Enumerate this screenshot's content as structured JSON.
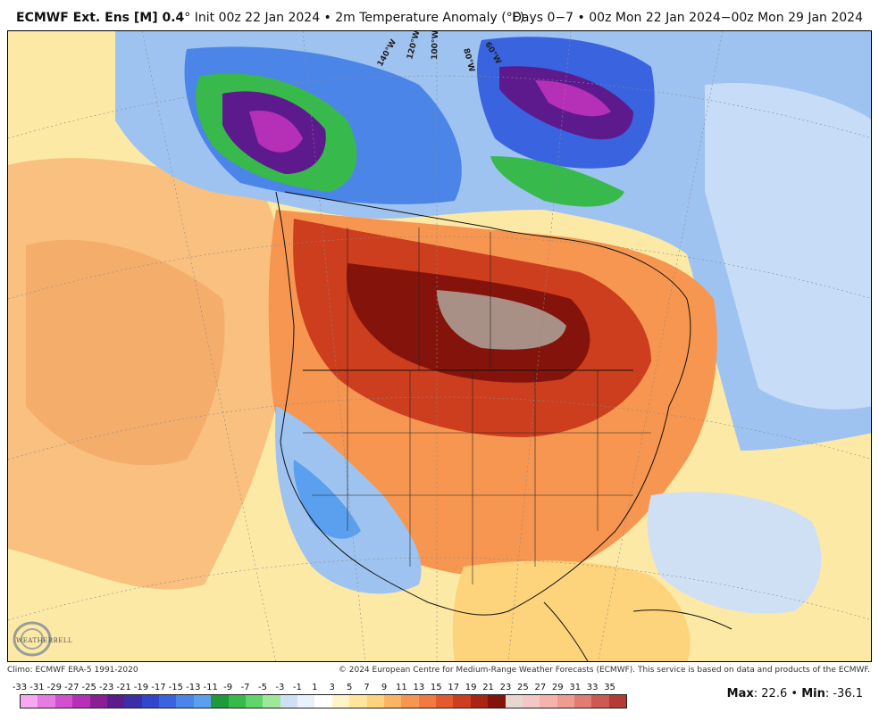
{
  "header": {
    "title_model": "ECMWF Ext. Ens [M] 0.4",
    "title_rest": "° Init 00z 22 Jan 2024 • 2m Temperature Anomaly (°F)",
    "valid_range": "Days 0−7 • 00z Mon 22 Jan 2024−00z Mon 29 Jan 2024"
  },
  "map": {
    "longitude_labels": [
      "140°W",
      "120°W",
      "100°W",
      "80°W",
      "60°W"
    ]
  },
  "footer": {
    "climo": "Climo: ECMWF ERA-5 1991-2020",
    "copyright": "© 2024 European Centre for Medium-Range Weather Forecasts (ECMWF). This service is based on data and products of the ECMWF."
  },
  "logo": {
    "text": "WEATHERBELL",
    "icon": "weatherbell-logo-icon"
  },
  "scale": {
    "labels": [
      "-33",
      "-31",
      "-29",
      "-27",
      "-25",
      "-23",
      "-21",
      "-19",
      "-17",
      "-15",
      "-13",
      "-11",
      "-9",
      "-7",
      "-5",
      "-3",
      "-1",
      "1",
      "3",
      "5",
      "7",
      "9",
      "11",
      "13",
      "15",
      "17",
      "19",
      "21",
      "23",
      "25",
      "27",
      "29",
      "31",
      "33",
      "35"
    ],
    "colors": [
      "#f7a8f0",
      "#e77ae3",
      "#d24fcf",
      "#b52fb7",
      "#8a1f95",
      "#5d1a8d",
      "#3b2fa8",
      "#3146cd",
      "#3a63e0",
      "#4c85e8",
      "#5aa0ef",
      "#1f9a3b",
      "#37b94c",
      "#5fd66a",
      "#9ee79b",
      "#cfe0f5",
      "#e9f1fb",
      "#ffffff",
      "#fff4c6",
      "#ffe69a",
      "#fdd37b",
      "#fbb562",
      "#f79650",
      "#f07a3f",
      "#e35a2e",
      "#cc3e1e",
      "#aa2413",
      "#84140b",
      "#e8d6d0",
      "#f3c7c4",
      "#f5b3ae",
      "#ee9b92",
      "#e27b72",
      "#cc5a50",
      "#b23c33"
    ]
  },
  "stats": {
    "max_label": "Max",
    "max_value": "22.6",
    "separator": "•",
    "min_label": "Min",
    "min_value": "-36.1"
  }
}
